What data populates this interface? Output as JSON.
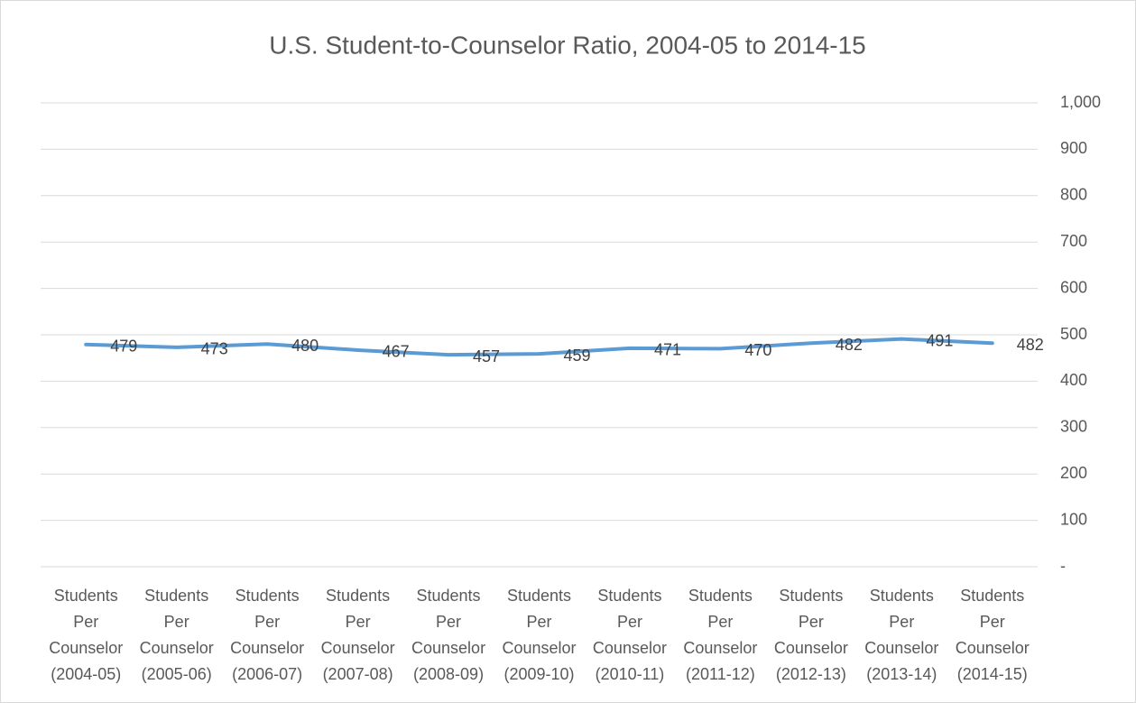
{
  "chart_data": {
    "type": "line",
    "title": "U.S. Student-to-Counselor Ratio, 2004-05 to 2014-15",
    "categories": [
      "Students Per Counselor (2004-05)",
      "Students Per Counselor (2005-06)",
      "Students Per Counselor (2006-07)",
      "Students Per Counselor (2007-08)",
      "Students Per Counselor (2008-09)",
      "Students Per Counselor (2009-10)",
      "Students Per Counselor (2010-11)",
      "Students Per Counselor (2011-12)",
      "Students Per Counselor (2012-13)",
      "Students Per Counselor (2013-14)",
      "Students Per Counselor (2014-15)"
    ],
    "series": [
      {
        "color": "#5b9bd5",
        "values": [
          479,
          473,
          480,
          467,
          457,
          459,
          471,
          470,
          482,
          491,
          482
        ]
      }
    ],
    "ylim": [
      0,
      1000
    ],
    "yticks": [
      {
        "value": 0,
        "label": "-"
      },
      100,
      200,
      300,
      400,
      500,
      600,
      700,
      800,
      900,
      {
        "value": 1000,
        "label": "1,000"
      }
    ],
    "y_axis_side": "right",
    "grid": true
  }
}
